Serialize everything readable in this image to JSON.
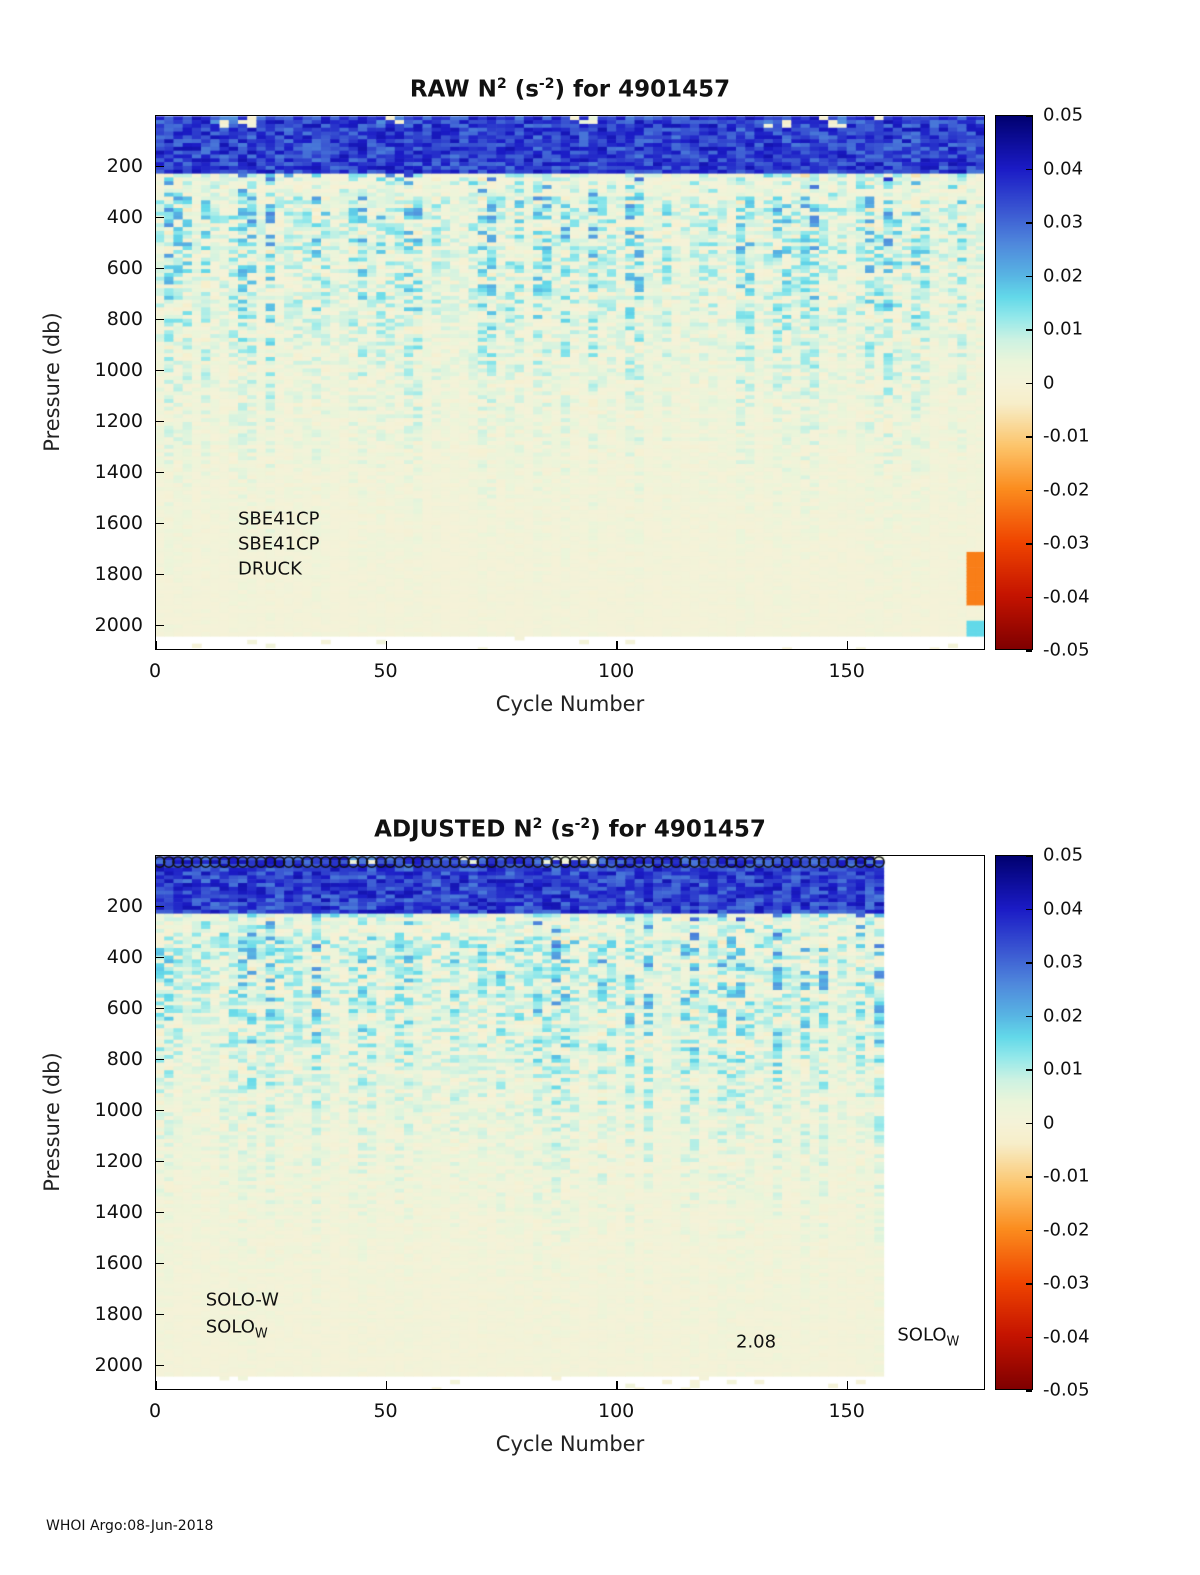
{
  "figure": {
    "background": "#ffffff",
    "footer": "WHOI Argo:08-Jun-2018"
  },
  "axis": {
    "x_label": "Cycle Number",
    "y_label": "Pressure (db)",
    "x_ticks": [
      0,
      50,
      100,
      150
    ],
    "y_ticks": [
      200,
      400,
      600,
      800,
      1000,
      1200,
      1400,
      1600,
      1800,
      2000
    ],
    "x_range": [
      0,
      180
    ],
    "y_range": [
      0,
      2100
    ]
  },
  "colorbar": {
    "min": -0.05,
    "max": 0.05,
    "labels": [
      "0.05",
      "0.04",
      "0.03",
      "0.02",
      "0.01",
      "0",
      "-0.01",
      "-0.02",
      "-0.03",
      "-0.04",
      "-0.05"
    ],
    "colormap": [
      {
        "v": -0.05,
        "c": "#7f0000"
      },
      {
        "v": -0.04,
        "c": "#c41300"
      },
      {
        "v": -0.03,
        "c": "#ef4400"
      },
      {
        "v": -0.02,
        "c": "#fb8c1e"
      },
      {
        "v": -0.012,
        "c": "#fcc46a"
      },
      {
        "v": -0.004,
        "c": "#f7eec9"
      },
      {
        "v": 0,
        "c": "#f5f2d8"
      },
      {
        "v": 0.004,
        "c": "#eaf5da"
      },
      {
        "v": 0.008,
        "c": "#cdf2e2"
      },
      {
        "v": 0.012,
        "c": "#96e9ea"
      },
      {
        "v": 0.016,
        "c": "#63d9e9"
      },
      {
        "v": 0.02,
        "c": "#58b5e3"
      },
      {
        "v": 0.026,
        "c": "#4f88dc"
      },
      {
        "v": 0.032,
        "c": "#3b58d2"
      },
      {
        "v": 0.04,
        "c": "#1b1bc6"
      },
      {
        "v": 0.05,
        "c": "#00006f"
      }
    ]
  },
  "chart_data": [
    {
      "type": "heatmap",
      "name": "raw",
      "title": {
        "pre": "RAW N",
        "sup1": "2",
        "mid": " (s",
        "sup2": "-2",
        "post": ") for 4901457"
      },
      "title_text": "RAW N^2 (s^-2) for 4901457",
      "xlabel": "Cycle Number",
      "ylabel": "Pressure (db)",
      "x_range": [
        0,
        180
      ],
      "y_range": [
        0,
        2100
      ],
      "cycle_extent": [
        0,
        180
      ],
      "grid": {
        "cycle_step": 2,
        "pressure_step": 15
      },
      "seed": 7,
      "depth_profile": {
        "pressure_db": [
          0,
          150,
          220,
          260,
          350,
          500,
          700,
          900,
          1100,
          1300,
          1500,
          1700,
          1900,
          2100
        ],
        "n2_mean": [
          0.046,
          0.045,
          0.04,
          0.027,
          0.024,
          0.022,
          0.019,
          0.014,
          0.01,
          0.0075,
          0.005,
          0.0036,
          0.0027,
          0.002
        ]
      },
      "annotations": [
        {
          "text": "SBE41CP",
          "x_cycle": 18,
          "y_pressure": 1585
        },
        {
          "text": "SBE41CP",
          "x_cycle": 18,
          "y_pressure": 1685
        },
        {
          "text": "DRUCK",
          "x_cycle": 18,
          "y_pressure": 1782
        }
      ],
      "anomalies": [
        {
          "cycles": [
            176,
            179
          ],
          "pressure": [
            1705,
            1915
          ],
          "value": -0.022
        },
        {
          "cycles": [
            176,
            179
          ],
          "pressure": [
            1985,
            2085
          ],
          "value": 0.016
        }
      ],
      "top_markers": null
    },
    {
      "type": "heatmap",
      "name": "adjusted",
      "title": {
        "pre": "ADJUSTED N",
        "sup1": "2",
        "mid": " (s",
        "sup2": "-2",
        "post": ") for 4901457"
      },
      "title_text": "ADJUSTED N^2 (s^-2) for 4901457",
      "xlabel": "Cycle Number",
      "ylabel": "Pressure (db)",
      "x_range": [
        0,
        180
      ],
      "y_range": [
        0,
        2100
      ],
      "cycle_extent": [
        0,
        158
      ],
      "grid": {
        "cycle_step": 2,
        "pressure_step": 15
      },
      "seed": 13,
      "depth_profile": {
        "pressure_db": [
          0,
          150,
          220,
          260,
          350,
          500,
          700,
          900,
          1100,
          1300,
          1500,
          1700,
          1900,
          2100
        ],
        "n2_mean": [
          0.046,
          0.045,
          0.04,
          0.027,
          0.024,
          0.022,
          0.019,
          0.014,
          0.01,
          0.0075,
          0.005,
          0.0036,
          0.0027,
          0.002
        ]
      },
      "annotations": [
        {
          "text": "SOLO-W",
          "x_cycle": 11,
          "y_pressure": 1745
        },
        {
          "text": "SOLO",
          "sub": "W",
          "x_cycle": 11,
          "y_pressure": 1862
        },
        {
          "text": "2.08",
          "x_cycle": 126,
          "y_pressure": 1912
        },
        {
          "text": "SOLO",
          "sub": "W",
          "x_cycle": 161,
          "y_pressure": 1892
        }
      ],
      "anomalies": [],
      "top_markers": {
        "symbol": "circle",
        "cycle_start": 0,
        "cycle_end": 158,
        "cycle_step": 2
      }
    }
  ]
}
